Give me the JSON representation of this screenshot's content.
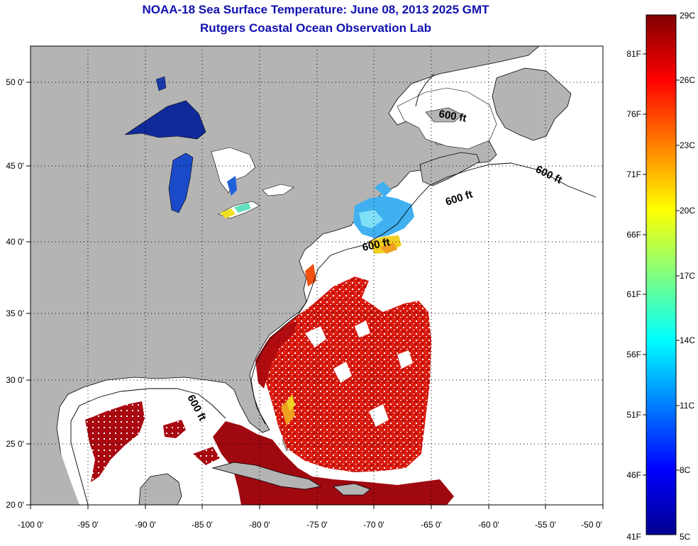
{
  "header": {
    "title": "NOAA-18 Sea Surface Temperature:  June 08, 2013 2025 GMT",
    "subtitle": "Rutgers Coastal Ocean Observation Lab"
  },
  "axes": {
    "x_ticks": [
      "-100 0'",
      "-95 0'",
      "-90 0'",
      "-85 0'",
      "-80 0'",
      "-75 0'",
      "-70 0'",
      "-65 0'",
      "-60 0'",
      "-55 0'",
      "-50 0'"
    ],
    "y_ticks": [
      "50 0'",
      "45 0'",
      "40 0'",
      "35 0'",
      "30 0'",
      "25 0'",
      "20 0'"
    ]
  },
  "contours": {
    "labels": [
      "600 ft",
      "600 ft",
      "600 ft",
      "600 ft",
      "600 ft"
    ]
  },
  "colorbar": {
    "celsius": [
      "29C",
      "26C",
      "23C",
      "20C",
      "17C",
      "14C",
      "11C",
      "8C",
      "5C"
    ],
    "fahrenheit": [
      "81F",
      "76F",
      "71F",
      "66F",
      "61F",
      "56F",
      "51F",
      "46F",
      "41F"
    ]
  },
  "colors": {
    "land": "#b4b4b4",
    "ocean_cloud": "#ffffff",
    "title": "#1010b0",
    "warm": "#cc1010",
    "cold": "#102a9a"
  }
}
